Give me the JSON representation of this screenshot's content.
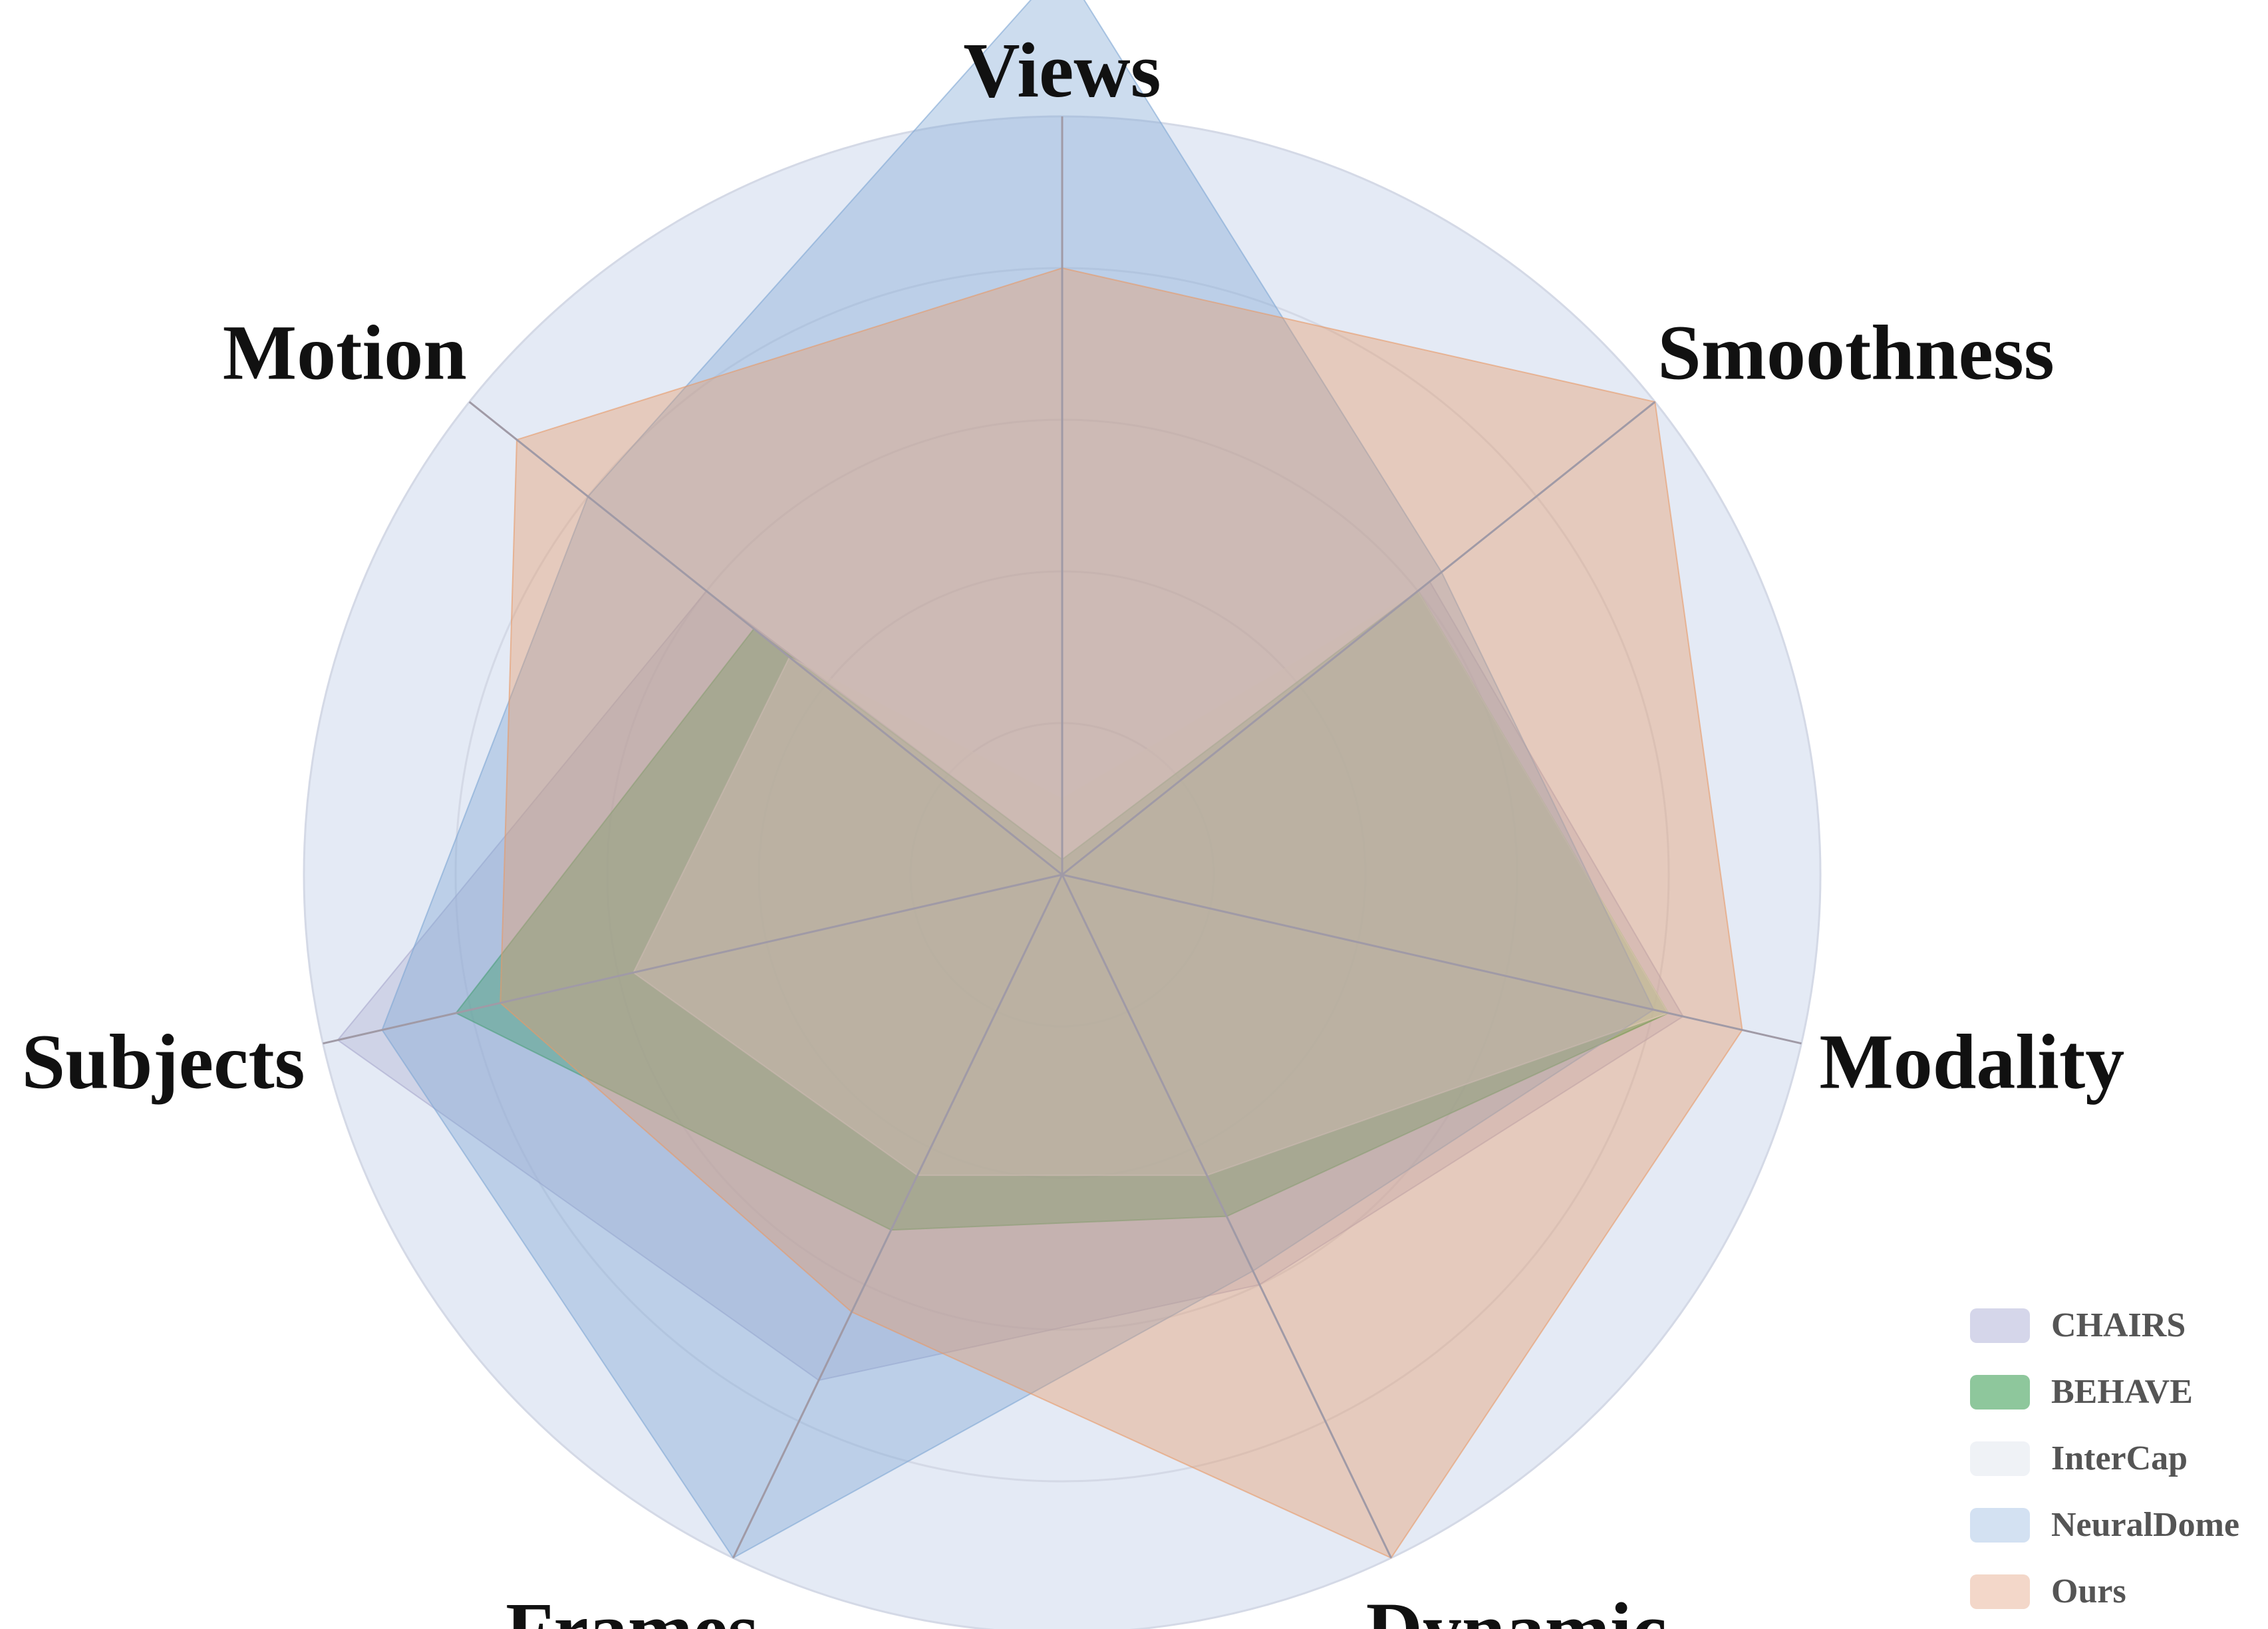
{
  "chart_data": {
    "type": "radar",
    "title": "",
    "axes": [
      "Views",
      "Smoothness",
      "Modality",
      "Dynamic",
      "Frames",
      "Subjects",
      "Motion"
    ],
    "rmax": 5,
    "rings": [
      1,
      2,
      3,
      4,
      5
    ],
    "grid": true,
    "legend_position": "bottom-right",
    "series": [
      {
        "name": "CHAIRS",
        "values": [
          0.1,
          3.1,
          4.2,
          3.0,
          3.7,
          4.9,
          3.0
        ],
        "color": "#a9a8cd",
        "opacity": 0.35
      },
      {
        "name": "BEHAVE",
        "values": [
          0.1,
          3.0,
          4.1,
          2.5,
          2.6,
          4.1,
          2.6
        ],
        "color": "#2e9b43",
        "opacity": 0.5
      },
      {
        "name": "InterCap",
        "values": [
          0.5,
          3.0,
          4.1,
          2.2,
          2.2,
          2.9,
          2.3
        ],
        "color": "#e6e9ee",
        "opacity": 0.5
      },
      {
        "name": "NeuralDome",
        "values": [
          6.0,
          3.2,
          4.0,
          2.9,
          5.0,
          4.6,
          4.0
        ],
        "color": "#7fa7d4",
        "opacity": 0.4
      },
      {
        "name": "Ours",
        "values": [
          4.0,
          5.0,
          4.6,
          5.0,
          3.2,
          3.8,
          4.6
        ],
        "color": "#e79a68",
        "opacity": 0.4
      }
    ]
  },
  "legend": {
    "items": [
      {
        "label": "CHAIRS",
        "swatch": "#d5d6ea"
      },
      {
        "label": "BEHAVE",
        "swatch": "#8ec79c"
      },
      {
        "label": "InterCap",
        "swatch": "#eff2f6"
      },
      {
        "label": "NeuralDome",
        "swatch": "#d3e1f2"
      },
      {
        "label": "Ours",
        "swatch": "#f3d7c9"
      }
    ]
  }
}
